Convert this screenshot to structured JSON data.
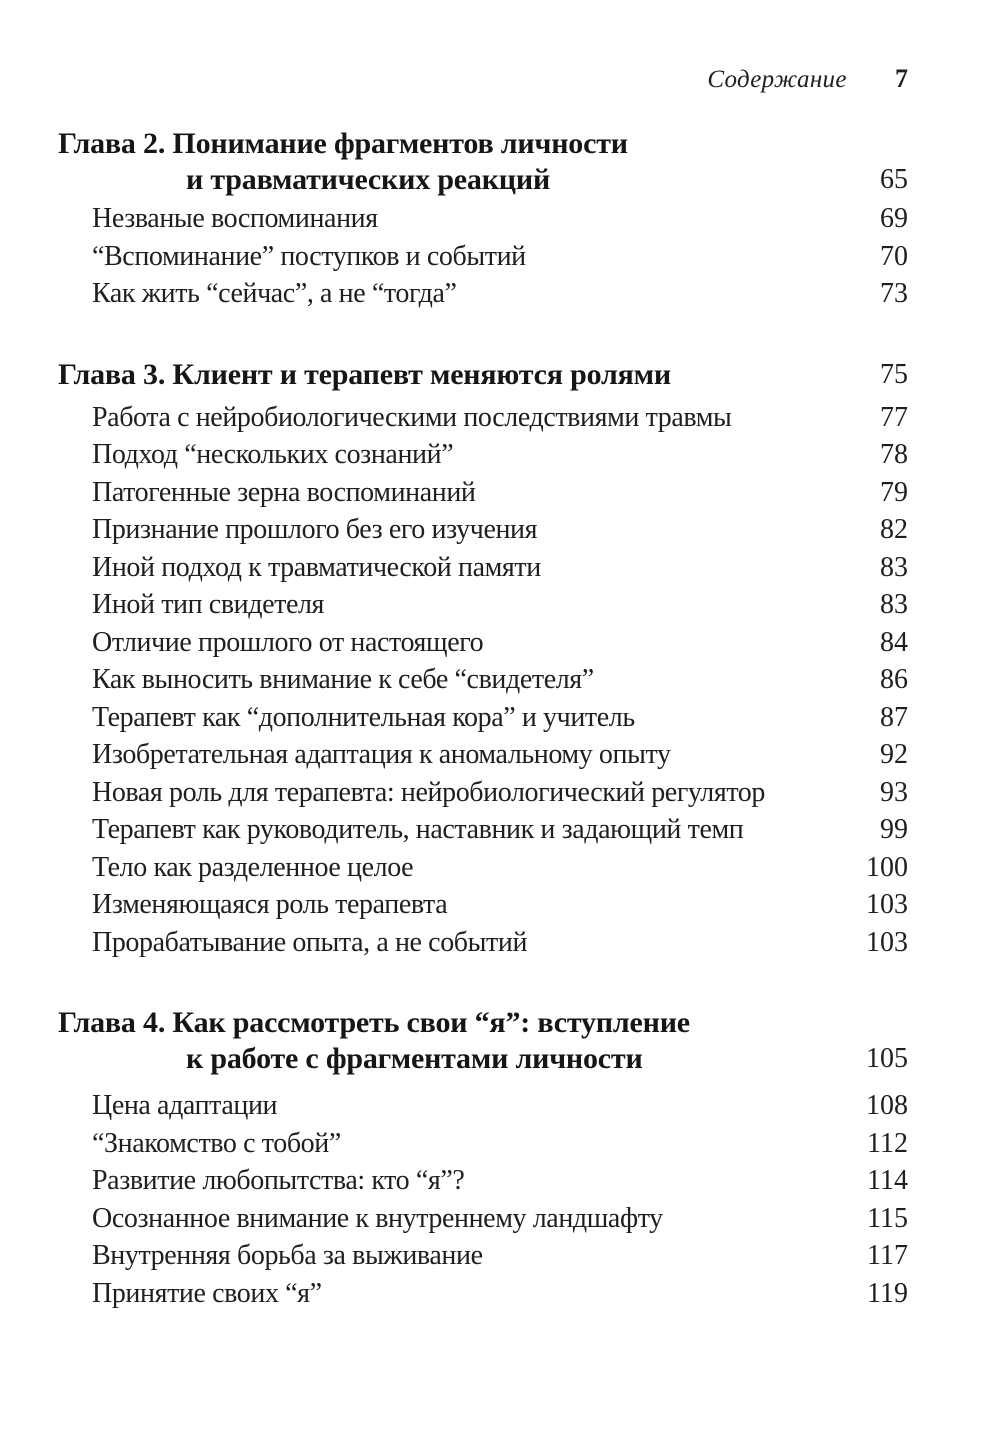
{
  "colors": {
    "paper": "#ffffff",
    "ink": "#1f1f1f"
  },
  "toc": {
    "header": {
      "title": "Содержание",
      "page_number": "7"
    },
    "sections": [
      {
        "heading": {
          "lines": [
            "Глава 2. Понимание фрагментов личности",
            "и травматических реакций"
          ],
          "page": "65"
        },
        "items": [
          {
            "title": "Незваные воспоминания",
            "page": "69"
          },
          {
            "title": "“Вспоминание” поступков и событий",
            "page": "70"
          },
          {
            "title": "Как жить “сейчас”, а не “тогда”",
            "page": "73"
          }
        ]
      },
      {
        "heading": {
          "lines": [
            "Глава 3. Клиент и терапевт меняются ролями"
          ],
          "page": "75"
        },
        "items": [
          {
            "title": "Работа с нейробиологическими последствиями травмы",
            "page": "77"
          },
          {
            "title": "Подход “нескольких сознаний”",
            "page": "78"
          },
          {
            "title": "Патогенные зерна воспоминаний",
            "page": "79"
          },
          {
            "title": "Признание прошлого без его изучения",
            "page": "82"
          },
          {
            "title": "Иной подход к травматической памяти",
            "page": "83"
          },
          {
            "title": "Иной тип свидетеля",
            "page": "83"
          },
          {
            "title": "Отличие прошлого от настоящего",
            "page": "84"
          },
          {
            "title": "Как выносить внимание к себе “свидетеля”",
            "page": "86"
          },
          {
            "title": "Терапевт как “дополнительная кора” и учитель",
            "page": "87"
          },
          {
            "title": "Изобретательная адаптация к аномальному опыту",
            "page": "92"
          },
          {
            "title": "Новая роль для терапевта: нейробиологический регулятор",
            "page": "93"
          },
          {
            "title": "Терапевт как руководитель, наставник и задающий темп",
            "page": "99"
          },
          {
            "title": "Тело как разделенное целое",
            "page": "100"
          },
          {
            "title": "Изменяющаяся роль терапевта",
            "page": "103"
          },
          {
            "title": "Прорабатывание опыта, а не событий",
            "page": "103"
          }
        ]
      },
      {
        "heading": {
          "lines": [
            "Глава 4. Как рассмотреть свои “я”: вступление",
            "к работе с фрагментами личности"
          ],
          "page": "105"
        },
        "items": [
          {
            "title": "Цена адаптации",
            "page": "108"
          },
          {
            "title": "“Знакомство с тобой”",
            "page": "112"
          },
          {
            "title": "Развитие любопытства: кто “я”?",
            "page": "114"
          },
          {
            "title": "Осознанное внимание к внутреннему ландшафту",
            "page": "115"
          },
          {
            "title": "Внутренняя борьба за выживание",
            "page": "117"
          },
          {
            "title": "Принятие своих “я”",
            "page": "119"
          }
        ]
      }
    ]
  }
}
